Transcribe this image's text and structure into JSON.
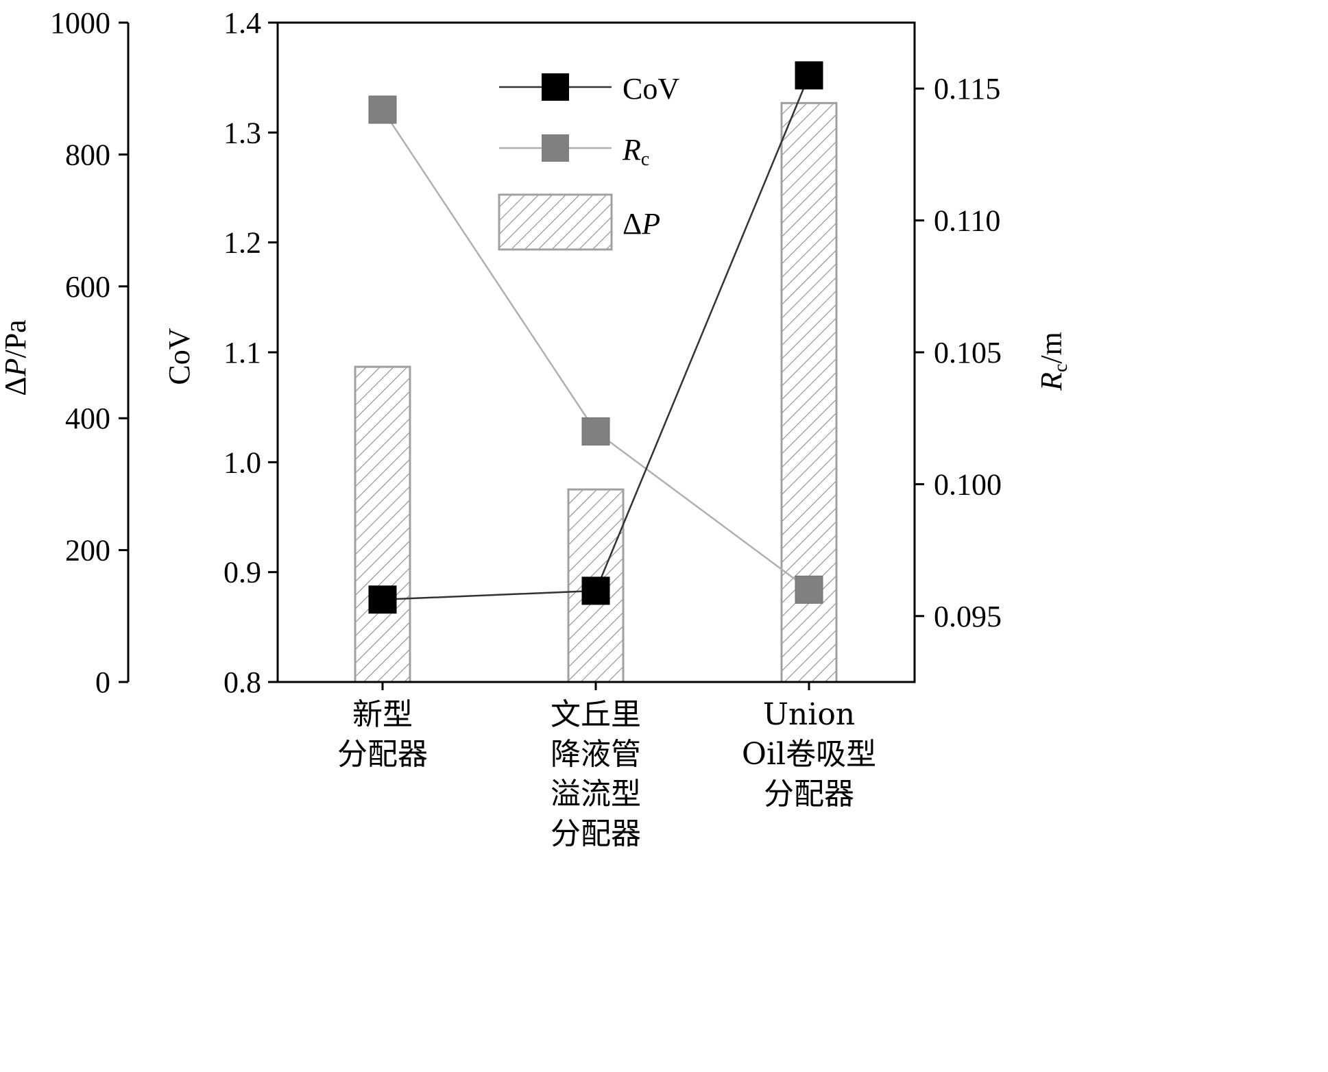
{
  "chart_data": {
    "type": "bar+line",
    "categories": [
      [
        "新型",
        "分配器"
      ],
      [
        "文丘里",
        "降液管",
        "溢流型",
        "分配器"
      ],
      [
        "Union",
        "Oil卷吸型",
        "分配器"
      ]
    ],
    "bar_series": {
      "legend_symbol": "ΔP",
      "axis": "left-outer",
      "values": [
        478,
        292,
        878
      ]
    },
    "line_series": [
      {
        "legend_main": "CoV",
        "legend_sub": "",
        "axis": "left-inner",
        "values": [
          0.875,
          0.883,
          1.352
        ],
        "color": "#000000"
      },
      {
        "legend_main": "R",
        "legend_sub": "c",
        "axis": "right",
        "values": [
          0.1142,
          0.102,
          0.096
        ],
        "color": "#808080"
      }
    ],
    "axes": {
      "left_outer": {
        "title_main": "ΔP",
        "title_suffix": "/Pa",
        "range": [
          0,
          1000
        ],
        "ticks": [
          0,
          200,
          400,
          600,
          800,
          1000
        ],
        "tick_labels": [
          "0",
          "200",
          "400",
          "600",
          "800",
          "1000"
        ]
      },
      "left_inner": {
        "title": "CoV",
        "range": [
          0.8,
          1.4
        ],
        "ticks": [
          0.8,
          0.9,
          1.0,
          1.1,
          1.2,
          1.3,
          1.4
        ],
        "tick_labels": [
          "0.8",
          "0.9",
          "1.0",
          "1.1",
          "1.2",
          "1.3",
          "1.4"
        ]
      },
      "right": {
        "title_main": "R",
        "title_sub": "c",
        "title_suffix": "/m",
        "range": [
          0.0925,
          0.1175
        ],
        "ticks": [
          0.095,
          0.1,
          0.105,
          0.11,
          0.115
        ],
        "tick_labels": [
          "0.095",
          "0.100",
          "0.105",
          "0.110",
          "0.115"
        ]
      }
    },
    "grid": false,
    "legend_position": "top-center",
    "colors": {
      "bar_fill": "#ffffff",
      "bar_hatch": "#8c8c8c",
      "bar_edge": "#a0a0a0",
      "cov": "#000000",
      "rc": "#808080",
      "rc_line": "#b0b0b0"
    }
  }
}
